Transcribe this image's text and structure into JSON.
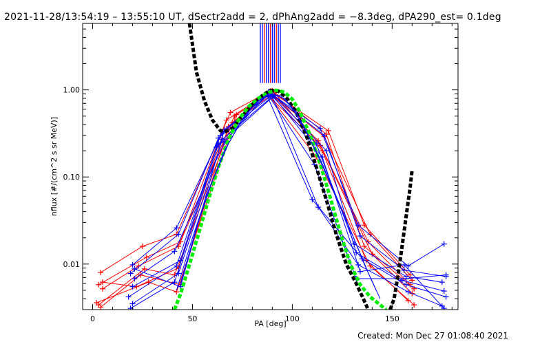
{
  "header": {
    "title": "2021-11-28/13:54:19 – 13:55:10 UT, dSectr2add = 2, dPhAng2add = −8.3deg, dPA290_est=  0.1deg"
  },
  "footer": {
    "created": "Created: Mon Dec 27 01:08:40 2021"
  },
  "chart_data": {
    "type": "line",
    "xlabel": "PA [deg]",
    "ylabel": "nflux [#/(cm^2 s sr MeV)]",
    "xlim": [
      -5,
      183
    ],
    "ylim": [
      0.003,
      5.8
    ],
    "yscale": "log",
    "x_ticks": [
      0,
      50,
      100,
      150
    ],
    "x_tick_labels": [
      "0",
      "50",
      "100",
      "150"
    ],
    "y_ticks": [
      0.01,
      0.1,
      1.0
    ],
    "y_tick_labels": [
      "0.01",
      "0.10",
      "1.00"
    ],
    "grid": false,
    "vertical_markers": {
      "x": [
        84,
        85,
        86,
        87,
        88,
        89,
        90,
        91,
        92,
        93,
        94
      ],
      "colors": [
        "#0000ff",
        "#0000ff",
        "#ff0000",
        "#0000ff",
        "#0000ff",
        "#ff0000",
        "#0000ff",
        "#0000ff",
        "#ff0000",
        "#0000ff",
        "#0000ff"
      ],
      "y_from": 1.2,
      "y_to": 5.8
    },
    "series": [
      {
        "color": "#ff0000",
        "marker": "plus",
        "x": [
          4,
          25,
          42,
          69,
          88,
          116,
          139,
          160
        ],
        "y": [
          0.008,
          0.016,
          0.022,
          0.55,
          0.95,
          0.29,
          0.022,
          0.0065
        ]
      },
      {
        "color": "#ff0000",
        "marker": "plus",
        "x": [
          3,
          27,
          44,
          71,
          89,
          113,
          138,
          159
        ],
        "y": [
          0.0058,
          0.012,
          0.018,
          0.5,
          0.92,
          0.26,
          0.018,
          0.0058
        ]
      },
      {
        "color": "#ff0000",
        "marker": "plus",
        "x": [
          5,
          23,
          43,
          67,
          90,
          117,
          136,
          161
        ],
        "y": [
          0.0052,
          0.0095,
          0.016,
          0.45,
          0.98,
          0.31,
          0.016,
          0.0052
        ]
      },
      {
        "color": "#ff0000",
        "marker": "plus",
        "x": [
          3,
          26,
          41,
          70,
          87,
          114,
          140,
          160
        ],
        "y": [
          0.0034,
          0.0088,
          0.0075,
          0.42,
          0.9,
          0.23,
          0.013,
          0.0046
        ]
      },
      {
        "color": "#ff0000",
        "marker": "plus",
        "x": [
          4,
          24,
          44,
          68,
          91,
          115,
          137,
          158
        ],
        "y": [
          0.0032,
          0.0075,
          0.0058,
          0.38,
          0.93,
          0.2,
          0.011,
          0.0038
        ]
      },
      {
        "color": "#ff0000",
        "marker": "plus",
        "x": [
          2,
          28,
          42,
          72,
          88,
          112,
          139,
          161
        ],
        "y": [
          0.0036,
          0.0062,
          0.0048,
          0.52,
          0.88,
          0.17,
          0.0095,
          0.0034
        ]
      },
      {
        "color": "#ff0000",
        "marker": "plus",
        "x": [
          5,
          22,
          43,
          66,
          89,
          118,
          136,
          159
        ],
        "y": [
          0.0062,
          0.0055,
          0.009,
          0.35,
          0.97,
          0.34,
          0.028,
          0.0075
        ]
      },
      {
        "color": "#0000ff",
        "marker": "plus",
        "x": [
          20,
          42,
          65,
          89,
          114,
          133,
          158,
          176
        ],
        "y": [
          0.0098,
          0.026,
          0.33,
          0.92,
          0.36,
          0.028,
          0.0095,
          0.017
        ]
      },
      {
        "color": "#0000ff",
        "marker": "plus",
        "x": [
          19,
          43,
          63,
          90,
          116,
          134,
          156,
          177
        ],
        "y": [
          0.0078,
          0.022,
          0.28,
          0.88,
          0.3,
          0.021,
          0.0085,
          0.0072
        ]
      },
      {
        "color": "#0000ff",
        "marker": "plus",
        "x": [
          21,
          41,
          66,
          88,
          112,
          131,
          157,
          175
        ],
        "y": [
          0.0068,
          0.014,
          0.25,
          0.95,
          0.24,
          0.017,
          0.0072,
          0.0062
        ]
      },
      {
        "color": "#0000ff",
        "marker": "plus",
        "x": [
          20,
          44,
          62,
          91,
          117,
          132,
          155,
          176
        ],
        "y": [
          0.0055,
          0.011,
          0.22,
          0.86,
          0.2,
          0.0135,
          0.0065,
          0.0049
        ]
      },
      {
        "color": "#0000ff",
        "marker": "plus",
        "x": [
          18,
          42,
          64,
          87,
          110,
          135,
          157,
          177
        ],
        "y": [
          0.0042,
          0.0095,
          0.3,
          0.9,
          0.055,
          0.0115,
          0.0058,
          0.0042
        ]
      },
      {
        "color": "#0000ff",
        "marker": "plus",
        "x": [
          20,
          43,
          65,
          90,
          113,
          133,
          158,
          175
        ],
        "y": [
          0.0035,
          0.0078,
          0.27,
          0.84,
          0.045,
          0.0098,
          0.0048,
          0.0033
        ]
      },
      {
        "color": "#0000ff",
        "marker": "plus",
        "x": [
          19,
          41,
          63,
          89,
          115,
          134,
          156,
          176
        ],
        "y": [
          0.0031,
          0.0062,
          0.24,
          0.93,
          0.17,
          0.0082,
          0.0098,
          0.0031
        ]
      },
      {
        "color": "#0000ff",
        "marker": "plus",
        "x": [
          21,
          44,
          66,
          88,
          111,
          132,
          157,
          177
        ],
        "y": [
          0.0088,
          0.0055,
          0.35,
          0.87,
          0.14,
          0.0068,
          0.0068,
          0.0075
        ]
      },
      {
        "color": "#000000",
        "marker": "thick-dash",
        "x": [
          48.5,
          52,
          56,
          60,
          64,
          66,
          70,
          75,
          80,
          85,
          89,
          93,
          97,
          102,
          107,
          112,
          117,
          122,
          127,
          132,
          136,
          138
        ],
        "y": [
          5.8,
          1.6,
          0.75,
          0.45,
          0.34,
          0.33,
          0.36,
          0.5,
          0.68,
          0.86,
          0.99,
          0.97,
          0.82,
          0.55,
          0.3,
          0.13,
          0.055,
          0.022,
          0.01,
          0.006,
          0.0038,
          0.003
        ]
      },
      {
        "color": "#000000",
        "marker": "thick-dash",
        "x": [
          149,
          151,
          153,
          155,
          157,
          159,
          160
        ],
        "y": [
          0.003,
          0.004,
          0.0075,
          0.016,
          0.035,
          0.075,
          0.12
        ]
      },
      {
        "color": "#00ee00",
        "marker": "thick-dash",
        "x": [
          41,
          44,
          48,
          53,
          58,
          63,
          68,
          73,
          78,
          83,
          88,
          92,
          96,
          100,
          104,
          109,
          114,
          119,
          124,
          129,
          134,
          139,
          144,
          147
        ],
        "y": [
          0.003,
          0.0045,
          0.009,
          0.022,
          0.055,
          0.13,
          0.27,
          0.45,
          0.64,
          0.8,
          0.93,
          0.99,
          0.94,
          0.78,
          0.55,
          0.3,
          0.14,
          0.058,
          0.023,
          0.01,
          0.0058,
          0.0042,
          0.0034,
          0.003
        ]
      },
      {
        "color": "#0000ff",
        "marker": "none",
        "x": [
          42,
          50,
          58,
          66,
          74,
          82,
          88,
          94,
          100,
          106,
          114,
          122,
          130,
          136,
          142
        ],
        "y": [
          0.005,
          0.02,
          0.07,
          0.2,
          0.42,
          0.72,
          0.9,
          0.86,
          0.62,
          0.36,
          0.16,
          0.06,
          0.022,
          0.01,
          0.005
        ]
      },
      {
        "color": "#0000ff",
        "marker": "none",
        "x": [
          44,
          52,
          60,
          68,
          76,
          84,
          90,
          96,
          102,
          108,
          116,
          124,
          132,
          138,
          144
        ],
        "y": [
          0.006,
          0.026,
          0.09,
          0.24,
          0.5,
          0.78,
          0.88,
          0.8,
          0.55,
          0.3,
          0.12,
          0.045,
          0.017,
          0.008,
          0.004
        ]
      }
    ]
  }
}
